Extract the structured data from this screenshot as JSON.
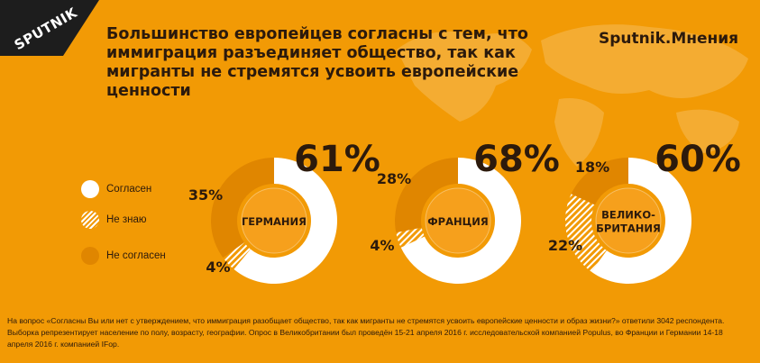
{
  "header": {
    "logo": "SPUTNIK",
    "title": "Большинство европейцев согласны с тем, что иммиграция разъединяет общество, так как мигранты не стремятся усвоить европейские ценности",
    "brand": "Sputnik.Мнения"
  },
  "legend": [
    {
      "label": "Согласен",
      "style": "solid-white"
    },
    {
      "label": "Не знаю",
      "style": "hatched"
    },
    {
      "label": "Не согласен",
      "style": "solid-orange"
    }
  ],
  "colors": {
    "background": "#f29a05",
    "agree": "#ffffff",
    "disagree": "#e08600",
    "center": "#f6a01c",
    "text": "#2c1a0c"
  },
  "chart_data": {
    "type": "pie",
    "series_names": [
      "Согласен",
      "Не знаю",
      "Не согласен"
    ],
    "charts": [
      {
        "country": [
          "ГЕРМАНИЯ"
        ],
        "agree": 61,
        "dont_know": 4,
        "disagree": 35,
        "labels": {
          "agree": "61%",
          "dont_know": "4%",
          "disagree": "35%"
        }
      },
      {
        "country": [
          "ФРАНЦИЯ"
        ],
        "agree": 68,
        "dont_know": 4,
        "disagree": 28,
        "labels": {
          "agree": "68%",
          "dont_know": "4%",
          "disagree": "28%"
        }
      },
      {
        "country": [
          "ВЕЛИКО-",
          "БРИТАНИЯ"
        ],
        "agree": 60,
        "dont_know": 22,
        "disagree": 18,
        "labels": {
          "agree": "60%",
          "dont_know": "22%",
          "disagree": "18%"
        }
      }
    ]
  },
  "footnote": "На вопрос «Согласны Вы или нет с утверждением, что иммиграция разобщает общество, так как мигранты не стремятся усвоить европейские ценности и образ жизни?» ответили 3042 респондента. Выборка репрезентирует население по полу, возрасту, географии. Опрос в Великобритании был проведён 15-21 апреля 2016 г. исследовательской компанией Populus, во Франции и Германии 14-18 апреля 2016 г. компанией IFop."
}
